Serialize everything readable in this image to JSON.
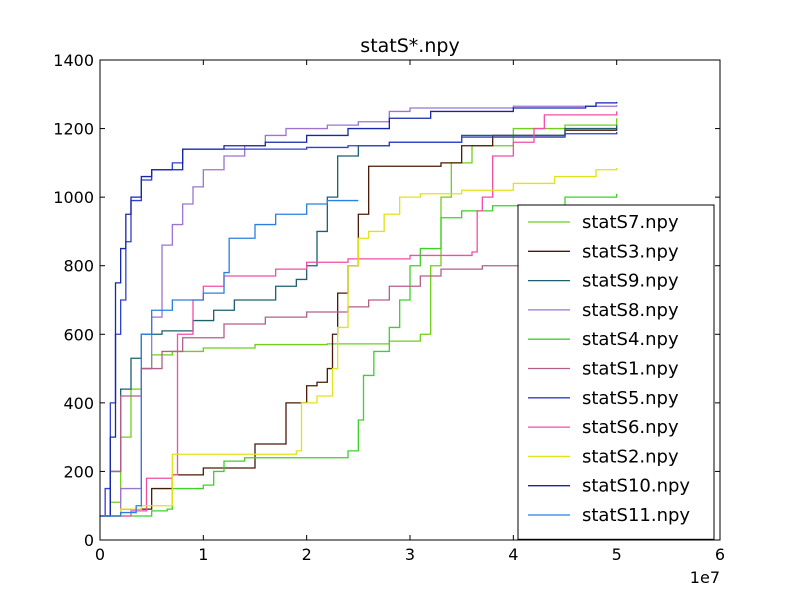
{
  "chart_data": {
    "type": "line",
    "title": "statS*.npy",
    "xlabel": "",
    "ylabel": "",
    "x_multiplier_label": "1e7",
    "xlim": [
      0,
      60000000
    ],
    "ylim": [
      0,
      1400
    ],
    "x_ticks": [
      0,
      10000000,
      20000000,
      30000000,
      40000000,
      50000000,
      60000000
    ],
    "x_tick_labels": [
      "0",
      "1",
      "2",
      "3",
      "4",
      "5",
      "6"
    ],
    "y_ticks": [
      0,
      200,
      400,
      600,
      800,
      1000,
      1200,
      1400
    ],
    "y_tick_labels": [
      "0",
      "200",
      "400",
      "600",
      "800",
      "1000",
      "1200",
      "1400"
    ],
    "grid": false,
    "legend_position": "lower-right",
    "series": [
      {
        "name": "statS7.npy",
        "color": "#6fcf1a",
        "points": [
          [
            0,
            70
          ],
          [
            1000000,
            110
          ],
          [
            2000000,
            300
          ],
          [
            3000000,
            440
          ],
          [
            4000000,
            500
          ],
          [
            5000000,
            540
          ],
          [
            7000000,
            550
          ],
          [
            10000000,
            560
          ],
          [
            15000000,
            570
          ],
          [
            22000000,
            572
          ],
          [
            28000000,
            580
          ],
          [
            31000000,
            600
          ],
          [
            32000000,
            800
          ],
          [
            33000000,
            1000
          ],
          [
            34000000,
            1100
          ],
          [
            36000000,
            1150
          ],
          [
            40000000,
            1200
          ],
          [
            45000000,
            1210
          ],
          [
            50000000,
            1230
          ]
        ]
      },
      {
        "name": "statS3.npy",
        "color": "#4a1a08",
        "points": [
          [
            0,
            70
          ],
          [
            2000000,
            90
          ],
          [
            5000000,
            150
          ],
          [
            7000000,
            190
          ],
          [
            10000000,
            210
          ],
          [
            15000000,
            280
          ],
          [
            18000000,
            400
          ],
          [
            20000000,
            450
          ],
          [
            21000000,
            460
          ],
          [
            22000000,
            500
          ],
          [
            22500000,
            600
          ],
          [
            23000000,
            720
          ],
          [
            24000000,
            800
          ],
          [
            25000000,
            950
          ],
          [
            26000000,
            1090
          ],
          [
            30000000,
            1090
          ],
          [
            33000000,
            1100
          ],
          [
            35000000,
            1150
          ],
          [
            38000000,
            1180
          ],
          [
            45000000,
            1195
          ],
          [
            50000000,
            1205
          ]
        ]
      },
      {
        "name": "statS9.npy",
        "color": "#1d5f6f",
        "points": [
          [
            0,
            70
          ],
          [
            1000000,
            200
          ],
          [
            2000000,
            440
          ],
          [
            3000000,
            530
          ],
          [
            4000000,
            600
          ],
          [
            6000000,
            610
          ],
          [
            9000000,
            640
          ],
          [
            11000000,
            670
          ],
          [
            13000000,
            700
          ],
          [
            17000000,
            740
          ],
          [
            19000000,
            760
          ],
          [
            20000000,
            800
          ],
          [
            21000000,
            900
          ],
          [
            22000000,
            1000
          ],
          [
            23000000,
            1120
          ],
          [
            25000000,
            1150
          ],
          [
            28000000,
            1160
          ],
          [
            35000000,
            1180
          ],
          [
            45000000,
            1200
          ],
          [
            50000000,
            1210
          ]
        ]
      },
      {
        "name": "statS8.npy",
        "color": "#9b74d1",
        "points": [
          [
            0,
            70
          ],
          [
            2000000,
            150
          ],
          [
            4000000,
            500
          ],
          [
            5000000,
            650
          ],
          [
            6000000,
            860
          ],
          [
            7000000,
            920
          ],
          [
            8000000,
            980
          ],
          [
            9000000,
            1030
          ],
          [
            10000000,
            1080
          ],
          [
            12000000,
            1120
          ],
          [
            14000000,
            1150
          ],
          [
            16000000,
            1180
          ],
          [
            18000000,
            1200
          ],
          [
            22000000,
            1210
          ],
          [
            25000000,
            1220
          ],
          [
            28000000,
            1250
          ],
          [
            30000000,
            1260
          ],
          [
            40000000,
            1265
          ],
          [
            50000000,
            1268
          ]
        ]
      },
      {
        "name": "statS4.npy",
        "color": "#3fd12a",
        "points": [
          [
            0,
            70
          ],
          [
            5000000,
            85
          ],
          [
            6500000,
            90
          ],
          [
            7000000,
            150
          ],
          [
            10000000,
            160
          ],
          [
            11000000,
            200
          ],
          [
            12000000,
            230
          ],
          [
            14000000,
            240
          ],
          [
            20000000,
            240
          ],
          [
            24000000,
            260
          ],
          [
            25000000,
            350
          ],
          [
            25500000,
            480
          ],
          [
            26500000,
            550
          ],
          [
            28000000,
            620
          ],
          [
            29000000,
            700
          ],
          [
            30000000,
            800
          ],
          [
            31000000,
            850
          ],
          [
            33000000,
            940
          ],
          [
            35000000,
            960
          ],
          [
            38000000,
            975
          ],
          [
            45000000,
            1000
          ],
          [
            50000000,
            1010
          ]
        ]
      },
      {
        "name": "statS1.npy",
        "color": "#b25f8c",
        "points": [
          [
            0,
            70
          ],
          [
            1000000,
            200
          ],
          [
            2000000,
            420
          ],
          [
            4000000,
            500
          ],
          [
            6000000,
            550
          ],
          [
            8000000,
            590
          ],
          [
            12000000,
            630
          ],
          [
            16000000,
            650
          ],
          [
            20000000,
            665
          ],
          [
            24000000,
            680
          ],
          [
            26000000,
            700
          ],
          [
            28000000,
            740
          ],
          [
            31000000,
            770
          ],
          [
            33000000,
            790
          ],
          [
            37000000,
            800
          ],
          [
            42000000,
            800
          ],
          [
            50000000,
            800
          ]
        ]
      },
      {
        "name": "statS5.npy",
        "color": "#2e3fcf",
        "points": [
          [
            0,
            70
          ],
          [
            500000,
            150
          ],
          [
            1000000,
            400
          ],
          [
            1500000,
            600
          ],
          [
            2000000,
            700
          ],
          [
            2500000,
            870
          ],
          [
            3000000,
            990
          ],
          [
            4000000,
            1050
          ],
          [
            5000000,
            1080
          ],
          [
            7000000,
            1100
          ],
          [
            8000000,
            1140
          ],
          [
            20000000,
            1145
          ],
          [
            24000000,
            1150
          ],
          [
            28000000,
            1160
          ],
          [
            35000000,
            1175
          ],
          [
            45000000,
            1185
          ],
          [
            50000000,
            1190
          ]
        ]
      },
      {
        "name": "statS6.npy",
        "color": "#f04fa8",
        "points": [
          [
            0,
            70
          ],
          [
            3000000,
            85
          ],
          [
            4500000,
            180
          ],
          [
            7000000,
            190
          ],
          [
            7500000,
            600
          ],
          [
            9000000,
            700
          ],
          [
            10000000,
            740
          ],
          [
            12000000,
            770
          ],
          [
            17000000,
            790
          ],
          [
            20000000,
            810
          ],
          [
            24000000,
            820
          ],
          [
            30000000,
            830
          ],
          [
            36000000,
            840
          ],
          [
            36500000,
            960
          ],
          [
            37000000,
            1000
          ],
          [
            38000000,
            1120
          ],
          [
            40000000,
            1160
          ],
          [
            42000000,
            1200
          ],
          [
            43000000,
            1240
          ],
          [
            50000000,
            1250
          ]
        ]
      },
      {
        "name": "statS2.npy",
        "color": "#e2e21a",
        "points": [
          [
            0,
            70
          ],
          [
            2000000,
            90
          ],
          [
            4000000,
            100
          ],
          [
            7000000,
            250
          ],
          [
            12000000,
            250
          ],
          [
            19000000,
            260
          ],
          [
            19500000,
            400
          ],
          [
            21000000,
            420
          ],
          [
            22500000,
            500
          ],
          [
            23000000,
            620
          ],
          [
            24000000,
            800
          ],
          [
            25000000,
            880
          ],
          [
            26000000,
            900
          ],
          [
            27500000,
            950
          ],
          [
            29000000,
            1000
          ],
          [
            31000000,
            1010
          ],
          [
            35000000,
            1020
          ],
          [
            40000000,
            1040
          ],
          [
            44000000,
            1060
          ],
          [
            48000000,
            1080
          ],
          [
            50000000,
            1085
          ]
        ]
      },
      {
        "name": "statS10.npy",
        "color": "#1428a8",
        "points": [
          [
            0,
            70
          ],
          [
            1000000,
            300
          ],
          [
            1500000,
            750
          ],
          [
            2000000,
            850
          ],
          [
            2500000,
            950
          ],
          [
            3000000,
            1000
          ],
          [
            4000000,
            1060
          ],
          [
            5000000,
            1080
          ],
          [
            8000000,
            1140
          ],
          [
            12000000,
            1150
          ],
          [
            16000000,
            1160
          ],
          [
            20000000,
            1180
          ],
          [
            24000000,
            1200
          ],
          [
            28000000,
            1230
          ],
          [
            32000000,
            1250
          ],
          [
            40000000,
            1260
          ],
          [
            47000000,
            1265
          ],
          [
            48000000,
            1275
          ],
          [
            50000000,
            1278
          ]
        ]
      },
      {
        "name": "statS11.npy",
        "color": "#2a7fe0",
        "points": [
          [
            0,
            70
          ],
          [
            2000000,
            80
          ],
          [
            3500000,
            100
          ],
          [
            4000000,
            600
          ],
          [
            5000000,
            670
          ],
          [
            7000000,
            700
          ],
          [
            10000000,
            720
          ],
          [
            12000000,
            780
          ],
          [
            12500000,
            880
          ],
          [
            15000000,
            920
          ],
          [
            17000000,
            950
          ],
          [
            20000000,
            980
          ],
          [
            22000000,
            990
          ],
          [
            25000000,
            990
          ]
        ]
      }
    ]
  }
}
